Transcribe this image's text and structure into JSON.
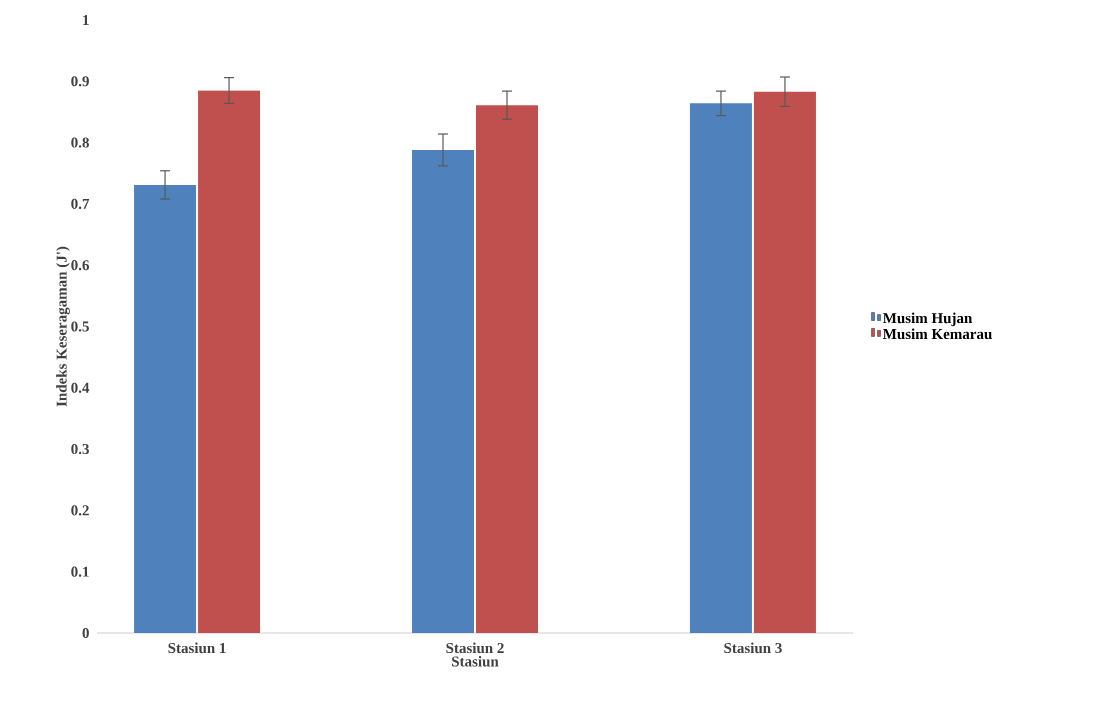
{
  "chart_data": {
    "type": "bar",
    "xlabel": "Stasiun",
    "ylabel": "Indeks Keseragaman (J')",
    "categories": [
      "Stasiun 1",
      "Stasiun 2",
      "Stasiun 3"
    ],
    "series": [
      {
        "name": "Musim Hujan",
        "color": "#4f81bd",
        "values": [
          0.731,
          0.788,
          0.864
        ],
        "errors": [
          0.023,
          0.026,
          0.02
        ]
      },
      {
        "name": "Musim Kemarau",
        "color": "#c0504d",
        "values": [
          0.885,
          0.861,
          0.883
        ],
        "errors": [
          0.021,
          0.023,
          0.024
        ]
      }
    ],
    "ylim": [
      0,
      1
    ],
    "yticks": [
      0,
      0.1,
      0.2,
      0.3,
      0.4,
      0.5,
      0.6,
      0.7,
      0.8,
      0.9,
      1
    ],
    "grid": false,
    "legend": "right"
  }
}
